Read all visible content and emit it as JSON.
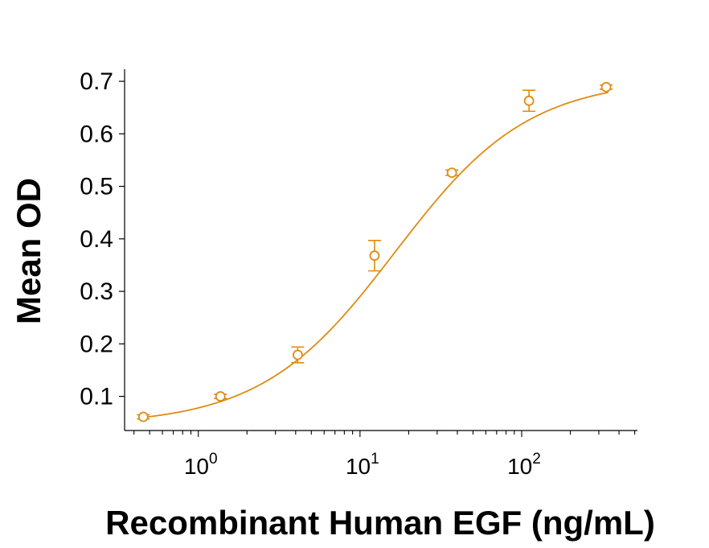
{
  "chart_data": {
    "type": "scatter",
    "xlabel": "Recombinant Human EGF (ng/mL)",
    "ylabel": "Mean OD",
    "x_scale": "log",
    "xlim": [
      0.35,
      520
    ],
    "ylim": [
      0.035,
      0.72
    ],
    "y_ticks": [
      "0.1",
      "0.2",
      "0.3",
      "0.4",
      "0.5",
      "0.6",
      "0.7"
    ],
    "x_ticks": [
      {
        "base": "10",
        "exp": "0",
        "value": 1
      },
      {
        "base": "10",
        "exp": "1",
        "value": 10
      },
      {
        "base": "10",
        "exp": "2",
        "value": 100
      }
    ],
    "series_color": "#E08A12",
    "points": [
      {
        "x": 0.457,
        "y": 0.061,
        "err": 0.004
      },
      {
        "x": 1.37,
        "y": 0.1,
        "err": 0.004
      },
      {
        "x": 4.12,
        "y": 0.179,
        "err": 0.015
      },
      {
        "x": 12.3,
        "y": 0.368,
        "err": 0.029
      },
      {
        "x": 37.0,
        "y": 0.526,
        "err": 0.005
      },
      {
        "x": 111,
        "y": 0.663,
        "err": 0.02
      },
      {
        "x": 333,
        "y": 0.689,
        "err": 0.004
      }
    ],
    "fit": {
      "bottom": 0.045,
      "top": 0.705,
      "ec50": 16.5,
      "hill": 1.05
    }
  }
}
